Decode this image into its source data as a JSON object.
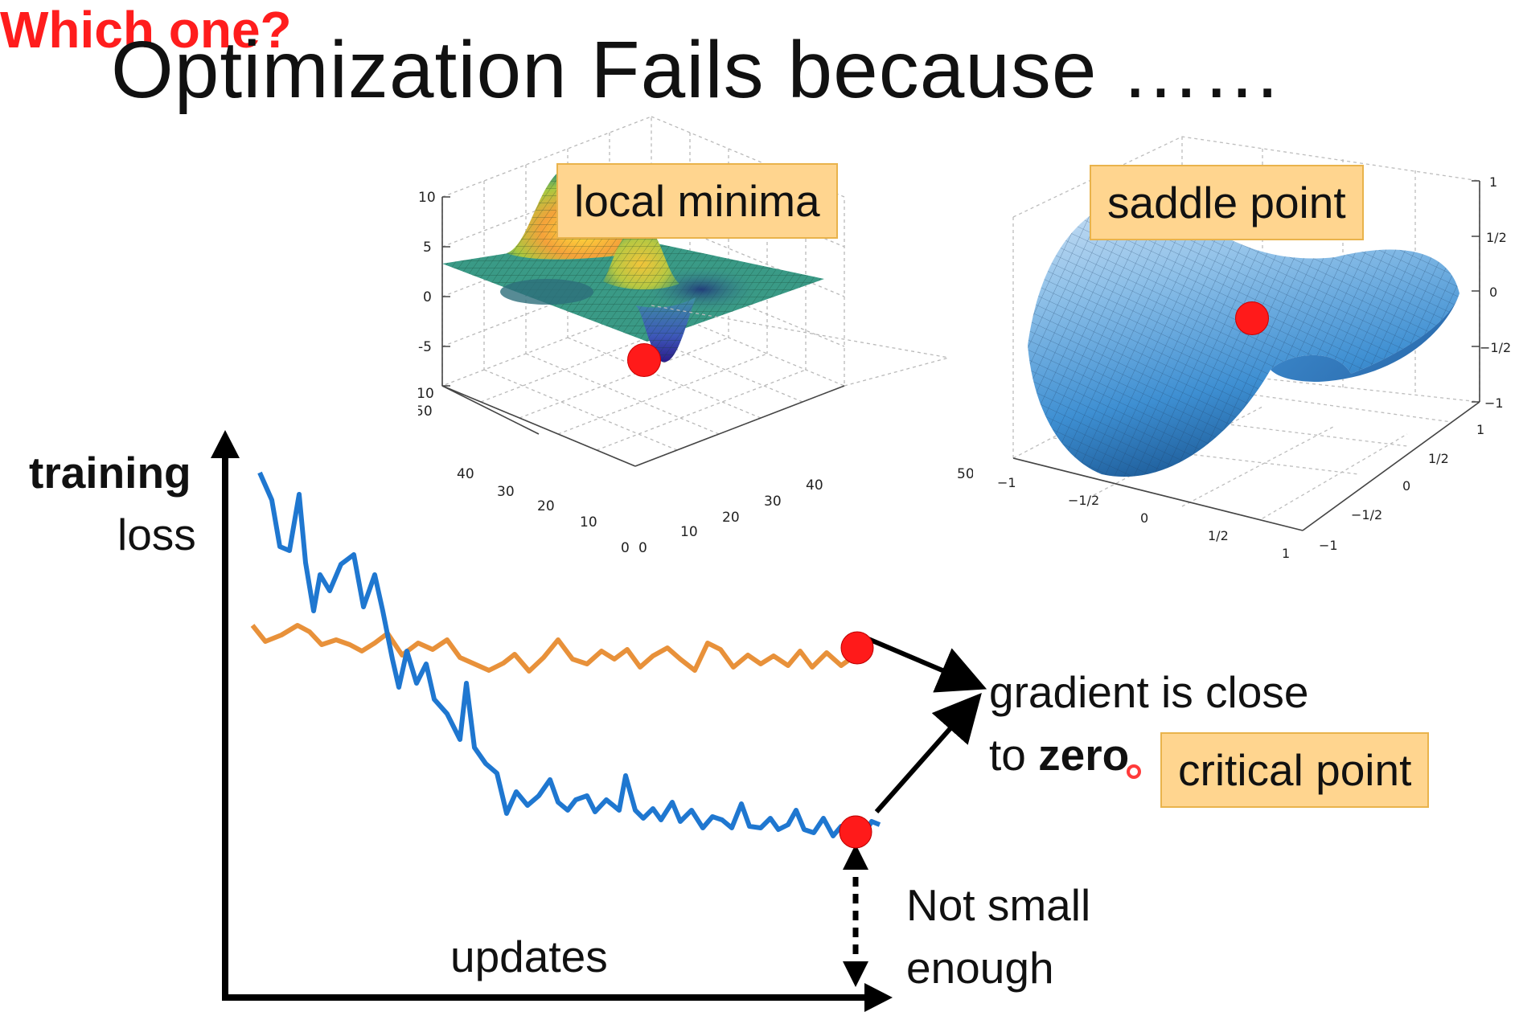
{
  "title": "Optimization Fails because ……",
  "tags": {
    "local_minima": "local minima",
    "saddle_point": "saddle point",
    "critical_point": "critical point"
  },
  "question": "Which one?",
  "axes": {
    "y_label_bold": "training",
    "y_label": "loss",
    "x_label": "updates"
  },
  "annotations": {
    "gradient_line1": "gradient is close",
    "gradient_to": "to",
    "gradient_zero": "zero",
    "not_small_line1": "Not small",
    "not_small_line2": "enough"
  },
  "local_minima_plot": {
    "z_ticks": [
      "10",
      "5",
      "0",
      "-5",
      "-10"
    ],
    "x_ticks": [
      "50",
      "40",
      "30",
      "20",
      "10",
      "0"
    ],
    "y_ticks": [
      "0",
      "10",
      "20",
      "30",
      "40",
      "50"
    ]
  },
  "saddle_plot": {
    "z_ticks": [
      "1",
      "1/2",
      "0",
      "−1/2",
      "−1"
    ],
    "x_ticks": [
      "−1",
      "−1/2",
      "0",
      "1/2",
      "1"
    ],
    "y_ticks": [
      "1",
      "1/2",
      "0",
      "−1/2",
      "−1"
    ]
  },
  "colors": {
    "blue_curve": "#1f77d0",
    "orange_curve": "#e8913a",
    "red_dot": "#ff1a1a",
    "tag_fill": "#ffd58f",
    "question_red": "#ff1d1d"
  }
}
